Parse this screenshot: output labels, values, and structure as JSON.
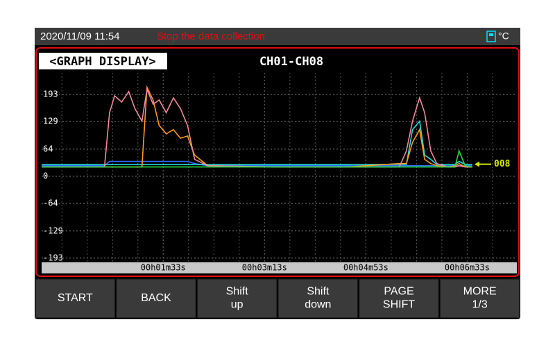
{
  "status_bar": {
    "datetime": "2020/11/09 11:54",
    "message": "Stop the data collection",
    "unit": "°C"
  },
  "panel": {
    "title": "<GRAPH DISPLAY>",
    "channels": "CH01-CH08"
  },
  "chart_data": {
    "type": "line",
    "x": [
      -27,
      35,
      40,
      45,
      52,
      59,
      65,
      72,
      77,
      83,
      89,
      96,
      103,
      110,
      117,
      124,
      137,
      206,
      274,
      326,
      333,
      339,
      346,
      351,
      357,
      363,
      374,
      381,
      385,
      391,
      398
    ],
    "xlim": [
      -27,
      442
    ],
    "xticks": [
      {
        "value": 93,
        "label": "00h01m33s"
      },
      {
        "value": 193,
        "label": "00h03m13s"
      },
      {
        "value": 293,
        "label": "00h04m53s"
      },
      {
        "value": 393,
        "label": "00h06m33s"
      }
    ],
    "ylim": [
      -203,
      244
    ],
    "yticks": [
      193,
      129,
      64,
      0,
      -64,
      -129,
      -193
    ],
    "grid": true,
    "series": [
      {
        "color": "#2f6bff",
        "values": [
          25,
          25,
          35,
          35,
          35,
          35,
          35,
          35,
          35,
          35,
          35,
          35,
          35,
          35,
          35,
          30,
          25,
          25,
          25,
          25,
          25,
          25,
          25,
          25,
          25,
          25,
          25,
          25,
          25,
          25,
          25
        ]
      },
      {
        "color": "#22dddd",
        "values": [
          28,
          28,
          28,
          28,
          28,
          28,
          28,
          28,
          28,
          28,
          28,
          28,
          28,
          28,
          28,
          28,
          28,
          28,
          28,
          28,
          28,
          110,
          130,
          50,
          40,
          28,
          28,
          28,
          35,
          28,
          28
        ]
      },
      {
        "color": "#ff9a1a",
        "values": [
          22,
          22,
          22,
          22,
          22,
          22,
          22,
          22,
          210,
          180,
          120,
          100,
          110,
          90,
          95,
          50,
          25,
          22,
          22,
          30,
          30,
          80,
          110,
          40,
          30,
          25,
          22,
          25,
          30,
          22,
          22
        ]
      },
      {
        "color": "#f08a9a",
        "values": [
          22,
          22,
          150,
          190,
          175,
          200,
          160,
          130,
          205,
          170,
          180,
          150,
          185,
          160,
          120,
          40,
          25,
          22,
          22,
          22,
          60,
          130,
          185,
          150,
          60,
          30,
          22,
          22,
          25,
          22,
          22
        ]
      },
      {
        "color": "#22dd44",
        "values": [
          22,
          22,
          22,
          22,
          22,
          22,
          22,
          22,
          22,
          22,
          22,
          22,
          22,
          22,
          22,
          22,
          22,
          22,
          22,
          22,
          22,
          22,
          22,
          22,
          22,
          22,
          22,
          22,
          60,
          25,
          22
        ]
      }
    ],
    "marker_label": {
      "text": "008",
      "color": "#d4e600"
    }
  },
  "buttons": [
    [
      "START"
    ],
    [
      "BACK"
    ],
    [
      "Shift",
      "up"
    ],
    [
      "Shift",
      "down"
    ],
    [
      "PAGE",
      "SHIFT"
    ],
    [
      "MORE",
      "1/3"
    ]
  ]
}
